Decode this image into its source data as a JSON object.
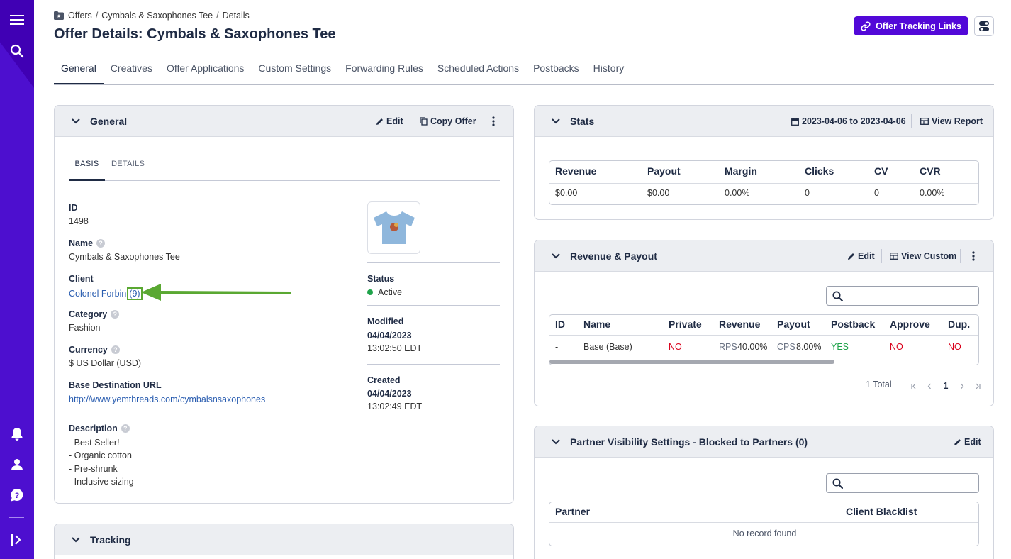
{
  "sidebar": {
    "icons": [
      "menu-icon",
      "search-icon",
      "bell-icon",
      "user-icon",
      "help-icon",
      "expand-icon"
    ]
  },
  "breadcrumb": {
    "items": [
      "Offers",
      "Cymbals & Saxophones Tee",
      "Details"
    ],
    "sep": "/"
  },
  "page": {
    "title": "Offer Details: Cymbals & Saxophones Tee"
  },
  "header": {
    "tracking_button": "Offer Tracking Links"
  },
  "tabs": [
    "General",
    "Creatives",
    "Offer Applications",
    "Custom Settings",
    "Forwarding Rules",
    "Scheduled Actions",
    "Postbacks",
    "History"
  ],
  "general": {
    "title": "General",
    "edit": "Edit",
    "copy": "Copy Offer",
    "subtabs": [
      "BASIS",
      "DETAILS"
    ],
    "id_label": "ID",
    "id_value": "1498",
    "name_label": "Name",
    "name_value": "Cymbals & Saxophones Tee",
    "client_label": "Client",
    "client_value": "Colonel Forbin",
    "client_count": "(9)",
    "category_label": "Category",
    "category_value": "Fashion",
    "currency_label": "Currency",
    "currency_value": "$ US Dollar (USD)",
    "url_label": "Base Destination URL",
    "url_value": "http://www.yemthreads.com/cymbalsnsaxophones",
    "description_label": "Description",
    "description_lines": [
      "- Best Seller!",
      "- Organic cotton",
      "- Pre-shrunk",
      "- Inclusive sizing"
    ],
    "status_label": "Status",
    "status_value": "Active",
    "modified_label": "Modified",
    "modified_date": "04/04/2023",
    "modified_time": "13:02:50 EDT",
    "created_label": "Created",
    "created_date": "04/04/2023",
    "created_time": "13:02:49 EDT",
    "colors": {
      "status_active": "#1fa34a",
      "arrow": "#5aa832"
    }
  },
  "tracking": {
    "title": "Tracking"
  },
  "stats": {
    "title": "Stats",
    "date_range": "2023-04-06 to 2023-04-06",
    "view_report": "View Report",
    "headers": [
      "Revenue",
      "Payout",
      "Margin",
      "Clicks",
      "CV",
      "CVR"
    ],
    "values": [
      "$0.00",
      "$0.00",
      "0.00%",
      "0",
      "0",
      "0.00%"
    ]
  },
  "revenue": {
    "title": "Revenue & Payout",
    "edit": "Edit",
    "view_custom": "View Custom",
    "headers": [
      "ID",
      "Name",
      "Private",
      "Revenue",
      "Payout",
      "Postback",
      "Approve",
      "Dup."
    ],
    "row": {
      "id": "-",
      "name": "Base (Base)",
      "private": "NO",
      "revenue_type": "RPS",
      "revenue": "40.00%",
      "payout_type": "CPS",
      "payout": "8.00%",
      "postback": "YES",
      "approve": "NO",
      "dup": "NO"
    },
    "total": "1 Total",
    "page": "1"
  },
  "partner": {
    "title": "Partner Visibility Settings - Blocked to Partners (0)",
    "edit": "Edit",
    "headers": [
      "Partner",
      "Client Blacklist"
    ],
    "empty": "No record found"
  }
}
